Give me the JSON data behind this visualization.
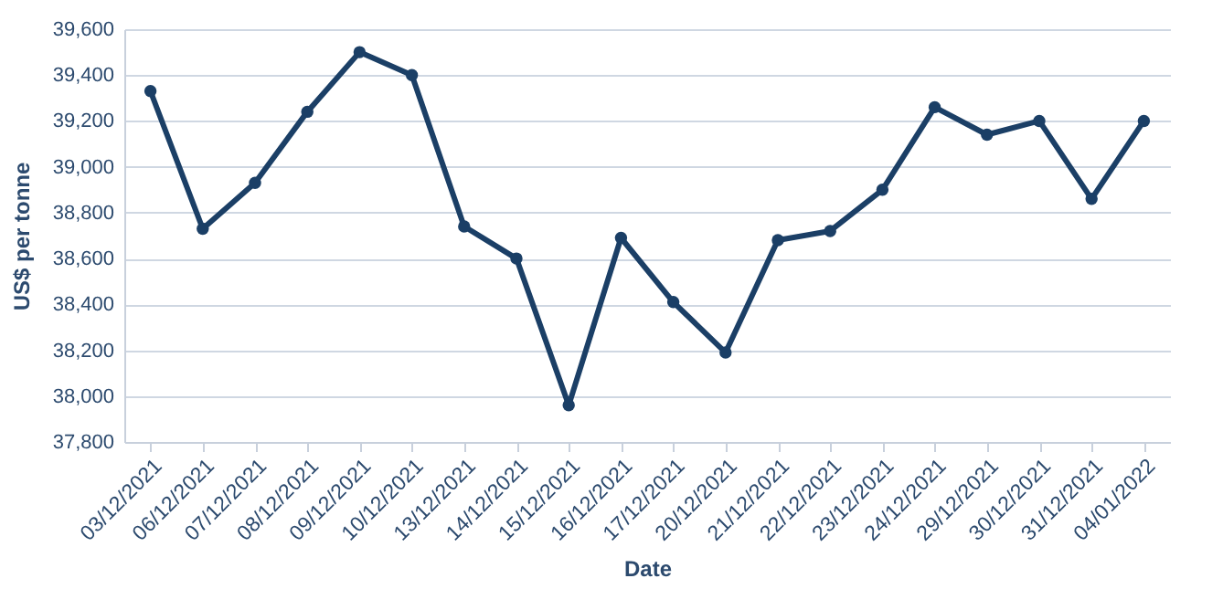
{
  "chart_data": {
    "type": "line",
    "xlabel": "Date",
    "ylabel": "US$ per tonne",
    "categories": [
      "03/12/2021",
      "06/12/2021",
      "07/12/2021",
      "08/12/2021",
      "09/12/2021",
      "10/12/2021",
      "13/12/2021",
      "14/12/2021",
      "15/12/2021",
      "16/12/2021",
      "17/12/2021",
      "20/12/2021",
      "21/12/2021",
      "22/12/2021",
      "23/12/2021",
      "24/12/2021",
      "29/12/2021",
      "30/12/2021",
      "31/12/2021",
      "04/01/2022"
    ],
    "series": [
      {
        "color": "#1b3f66",
        "values": [
          39330,
          38730,
          38930,
          39240,
          39500,
          39400,
          38740,
          38600,
          37960,
          38690,
          38410,
          38190,
          38680,
          38720,
          38900,
          39260,
          39140,
          39200,
          38860,
          39200
        ]
      }
    ],
    "ylim": [
      37800,
      39600
    ],
    "yticks": [
      {
        "value": 37800,
        "label": "37,800"
      },
      {
        "value": 38000,
        "label": "38,000"
      },
      {
        "value": 38200,
        "label": "38,200"
      },
      {
        "value": 38400,
        "label": "38,400"
      },
      {
        "value": 38600,
        "label": "38,600"
      },
      {
        "value": 38800,
        "label": "38,800"
      },
      {
        "value": 39000,
        "label": "39,000"
      },
      {
        "value": 39200,
        "label": "39,200"
      },
      {
        "value": 39400,
        "label": "39,400"
      },
      {
        "value": 39600,
        "label": "39,600"
      }
    ],
    "grid": "y",
    "marker": "circle",
    "line_style": "solid",
    "legend": false
  }
}
